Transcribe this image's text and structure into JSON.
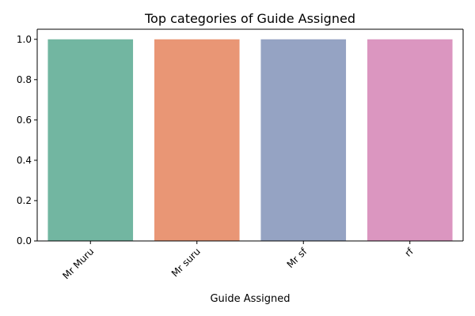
{
  "chart_data": {
    "type": "bar",
    "title": "Top categories of Guide Assigned",
    "xlabel": "Guide Assigned",
    "ylabel": "",
    "categories": [
      "Mr Muru",
      "Mr suru",
      "Mr sf",
      "rf"
    ],
    "values": [
      1.0,
      1.0,
      1.0,
      1.0
    ],
    "ylim": [
      0,
      1.05
    ],
    "yticks": [
      "0.0",
      "0.2",
      "0.4",
      "0.6",
      "0.8",
      "1.0"
    ],
    "ytick_values": [
      0.0,
      0.2,
      0.4,
      0.6,
      0.8,
      1.0
    ],
    "colors": [
      "#72b6a1",
      "#e99675",
      "#95a3c3",
      "#db96c0"
    ],
    "grid": false,
    "legend": "none",
    "xtick_rotation_deg": -45
  }
}
